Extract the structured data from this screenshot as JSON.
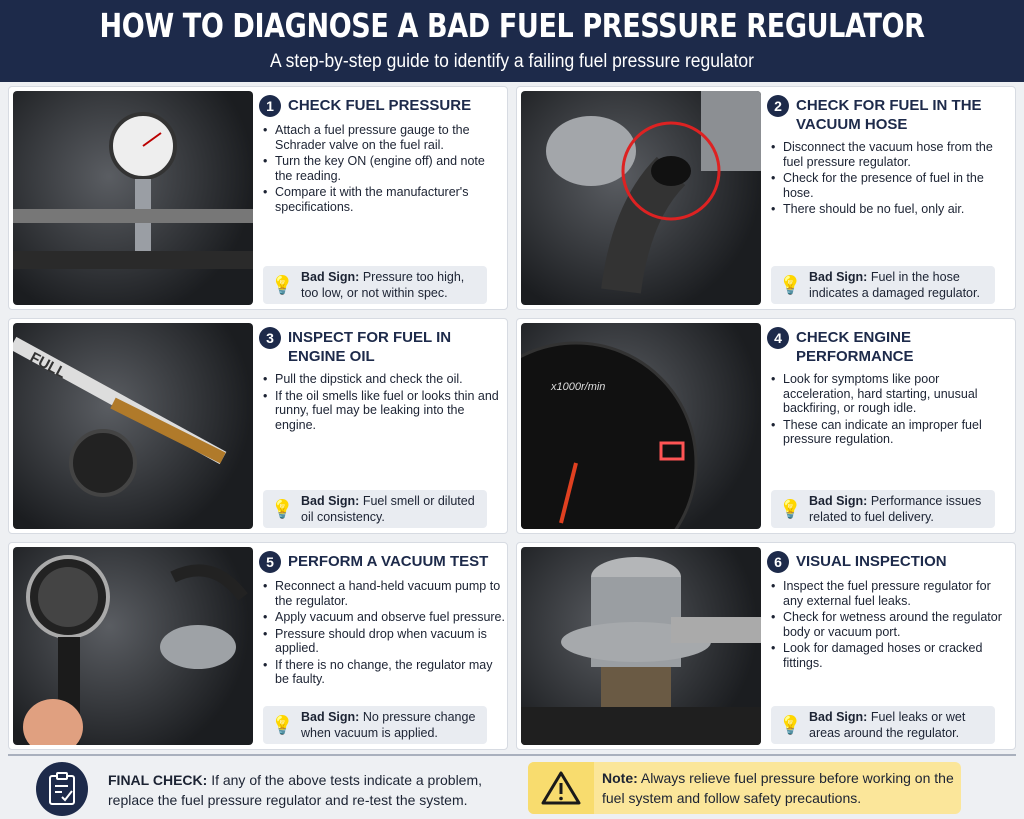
{
  "header": {
    "title": "HOW TO DIAGNOSE A BAD FUEL PRESSURE REGULATOR",
    "subtitle": "A step-by-step guide to identify a failing fuel pressure regulator"
  },
  "steps": [
    {
      "number": "1",
      "title": "CHECK FUEL PRESSURE",
      "bullets": [
        "Attach a fuel pressure gauge to the Schrader valve on the fuel rail.",
        "Turn the key ON (engine off) and note the reading.",
        "Compare it with the manufacturer's specifications."
      ],
      "bad_label": "Bad Sign:",
      "bad_text": "Pressure too high, too low, or not within spec."
    },
    {
      "number": "2",
      "title": "CHECK FOR FUEL IN THE VACUUM HOSE",
      "bullets": [
        "Disconnect the vacuum hose from the fuel pressure regulator.",
        "Check for the presence of fuel in the hose.",
        "There should be no fuel, only air."
      ],
      "bad_label": "Bad Sign:",
      "bad_text": "Fuel in the hose indicates a damaged regulator."
    },
    {
      "number": "3",
      "title": "INSPECT FOR FUEL IN ENGINE OIL",
      "bullets": [
        "Pull the dipstick and check the oil.",
        "If the oil smells like fuel or looks thin and runny, fuel may be leaking into the engine."
      ],
      "bad_label": "Bad Sign:",
      "bad_text": "Fuel smell or diluted oil consistency.",
      "photo_label": "FULL"
    },
    {
      "number": "4",
      "title": "CHECK ENGINE PERFORMANCE",
      "bullets": [
        "Look for symptoms like poor acceleration, hard starting, unusual backfiring, or rough idle.",
        "These can indicate an improper fuel pressure regulation."
      ],
      "bad_label": "Bad Sign:",
      "bad_text": "Performance issues related to fuel delivery.",
      "photo_label": "x1000r/min"
    },
    {
      "number": "5",
      "title": "PERFORM A VACUUM TEST",
      "bullets": [
        "Reconnect a hand-held vacuum pump to the regulator.",
        "Apply vacuum and observe fuel pressure.",
        "Pressure should drop when vacuum is applied.",
        "If there is no change, the regulator may be faulty."
      ],
      "bad_label": "Bad Sign:",
      "bad_text": "No pressure change when vacuum is applied."
    },
    {
      "number": "6",
      "title": "VISUAL INSPECTION",
      "bullets": [
        "Inspect the fuel pressure regulator for any external fuel leaks.",
        "Check for wetness around the regulator body or vacuum port.",
        "Look for damaged hoses or cracked fittings."
      ],
      "bad_label": "Bad Sign:",
      "bad_text": "Fuel leaks or wet areas around the regulator."
    }
  ],
  "footer": {
    "final_label": "FINAL CHECK:",
    "final_text": "If any of the above tests indicate a problem, replace the fuel pressure regulator and re-test the system.",
    "note_label": "Note:",
    "note_text": "Always relieve fuel pressure before working on the fuel system and follow safety precautions."
  },
  "colors": {
    "navy": "#1d2a4a",
    "note_bg": "#fbe69a",
    "bad_bg": "#e9ecf1"
  }
}
